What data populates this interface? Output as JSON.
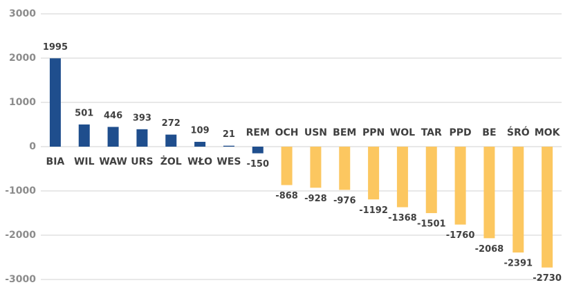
{
  "chart_data": {
    "type": "bar",
    "categories": [
      "BIA",
      "WIL",
      "WAW",
      "URS",
      "ŻOL",
      "WŁO",
      "WES",
      "REM",
      "OCH",
      "USN",
      "BEM",
      "PPN",
      "WOL",
      "TAR",
      "PPD",
      "BE",
      "ŚRÓ",
      "MOK"
    ],
    "values": [
      1995,
      501,
      446,
      393,
      272,
      109,
      21,
      -150,
      -868,
      -928,
      -976,
      -1192,
      -1368,
      -1501,
      -1760,
      -2068,
      -2391,
      -2730
    ],
    "colors": [
      "#1f4e8d",
      "#1f4e8d",
      "#1f4e8d",
      "#1f4e8d",
      "#1f4e8d",
      "#1f4e8d",
      "#1f4e8d",
      "#1f4e8d",
      "#fcc760",
      "#fcc760",
      "#fcc760",
      "#fcc760",
      "#fcc760",
      "#fcc760",
      "#fcc760",
      "#fcc760",
      "#fcc760",
      "#fcc760"
    ],
    "ylim": [
      -3000,
      3000
    ],
    "yticks": [
      -3000,
      -2000,
      -1000,
      0,
      1000,
      2000,
      3000
    ],
    "grid": true
  }
}
